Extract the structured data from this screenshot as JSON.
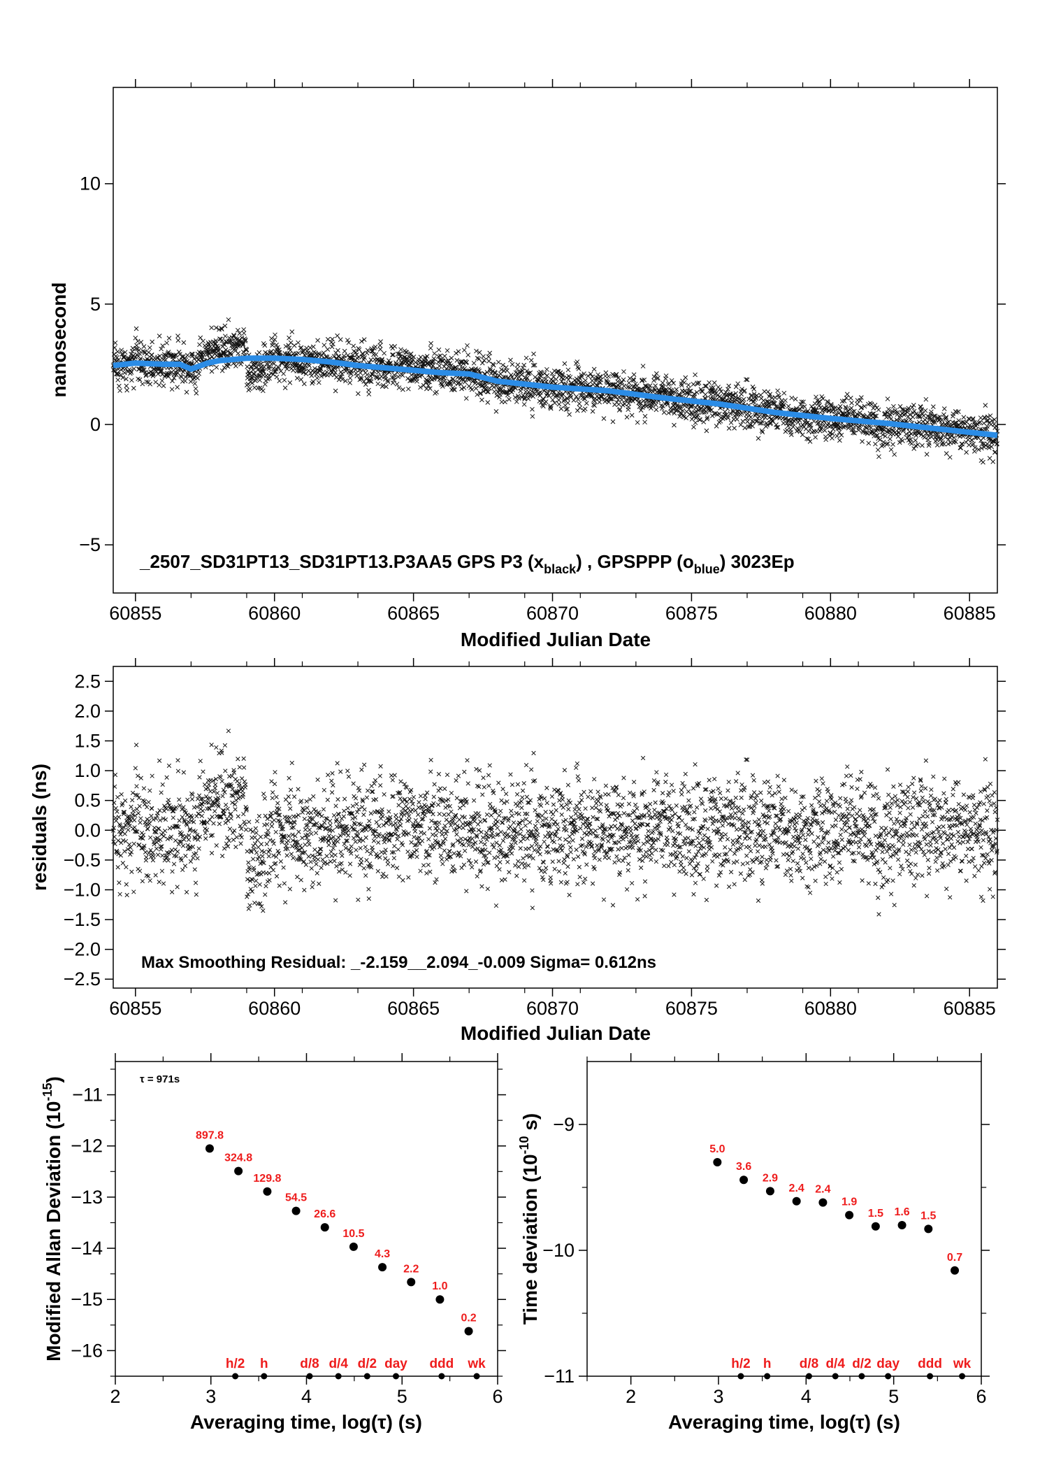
{
  "chart_data": [
    {
      "type": "scatter",
      "xlabel": "Modified Julian Date",
      "ylabel": "nanosecond",
      "xlim": [
        60854.2,
        60886.0
      ],
      "ylim": [
        -7.0,
        14.0
      ],
      "xticks": [
        60855,
        60860,
        60865,
        60870,
        60875,
        60880,
        60885
      ],
      "yticks": [
        -5,
        0,
        5,
        10
      ],
      "annotation": {
        "prefix": "_2507_SD31PT13_SD31PT13.P3AA5     GPS P3 (x",
        "sub1": "black",
        "mid": ") ,  GPSPPP (o",
        "sub2": "blue",
        "suffix": ")  3023Ep"
      },
      "series": [
        {
          "name": "GPS P3",
          "marker": "x",
          "color": "#000000",
          "n_points": 3023,
          "noise_sd_ns": 0.61
        },
        {
          "name": "GPSPPP",
          "marker": "o",
          "color": "#2b8ce6",
          "x": [
            60854.2,
            60855.0,
            60856.0,
            60856.6,
            60857.0,
            60857.6,
            60858.0,
            60859.0,
            60860.0,
            60861.0,
            60862.0,
            60863.0,
            60864.0,
            60865.0,
            60866.0,
            60867.0,
            60868.0,
            60870.0,
            60872.0,
            60874.0,
            60876.0,
            60878.0,
            60880.0,
            60882.0,
            60884.0,
            60886.0
          ],
          "y": [
            2.45,
            2.55,
            2.5,
            2.5,
            2.3,
            2.55,
            2.65,
            2.75,
            2.75,
            2.7,
            2.6,
            2.45,
            2.35,
            2.25,
            2.15,
            2.1,
            1.8,
            1.55,
            1.4,
            1.1,
            0.85,
            0.5,
            0.25,
            0.05,
            -0.2,
            -0.45
          ]
        }
      ]
    },
    {
      "type": "scatter",
      "xlabel": "Modified Julian Date",
      "ylabel": "residuals (ns)",
      "xlim": [
        60854.2,
        60886.0
      ],
      "ylim": [
        -2.65,
        2.75
      ],
      "xticks": [
        60855,
        60860,
        60865,
        60870,
        60875,
        60880,
        60885
      ],
      "yticks": [
        -2.5,
        -2.0,
        -1.5,
        -1.0,
        -0.5,
        0.0,
        0.5,
        1.0,
        1.5,
        2.0,
        2.5
      ],
      "ytick_labels": [
        "−2.5",
        "−2.0",
        "−1.5",
        "−1.0",
        "−0.5",
        "0.0",
        "0.5",
        "1.0",
        "1.5",
        "2.0",
        "2.5"
      ],
      "annotation": "Max Smoothing Residual: _-2.159__2.094_-0.009  Sigma= 0.612ns",
      "stats": {
        "min": -2.159,
        "max": 2.094,
        "mean": -0.009,
        "sigma": 0.612
      }
    },
    {
      "type": "scatter",
      "xlabel": "Averaging time, log(τ) (s)",
      "ylabel": "Modified Allan Deviation (10",
      "ylabel_sup": "-15",
      "ylabel_end": ")",
      "xlim": [
        2,
        6
      ],
      "ylim": [
        -16.5,
        -10.35
      ],
      "xticks": [
        2,
        3,
        4,
        5,
        6
      ],
      "yticks": [
        -16,
        -15,
        -14,
        -13,
        -12,
        -11
      ],
      "ytick_labels": [
        "−16",
        "−15",
        "−14",
        "−13",
        "−12",
        "−11"
      ],
      "tau_note": "τ = 971s",
      "x": [
        2.987,
        3.288,
        3.59,
        3.891,
        4.192,
        4.493,
        4.794,
        5.095,
        5.396,
        5.697
      ],
      "y": [
        -12.05,
        -12.49,
        -12.89,
        -13.27,
        -13.59,
        -13.97,
        -14.37,
        -14.66,
        -15.0,
        -15.62
      ],
      "labels": [
        "897.8",
        "324.8",
        "129.8",
        "54.5",
        "26.6",
        "10.5",
        "4.3",
        "2.2",
        "1.0",
        "0.2"
      ],
      "markers": {
        "x": [
          3.255,
          3.556,
          4.033,
          4.334,
          4.635,
          4.936,
          5.414,
          5.781
        ],
        "labels": [
          "h/2",
          "h",
          "d/8",
          "d/4",
          "d/2",
          "day",
          "ddd",
          "wk"
        ]
      }
    },
    {
      "type": "scatter",
      "xlabel": "Averaging time, log(τ) (s)",
      "ylabel": "Time deviation (10",
      "ylabel_sup": "-10",
      "ylabel_end": " s)",
      "xlim": [
        1.5,
        6.0
      ],
      "ylim": [
        -11.0,
        -8.5
      ],
      "xticks": [
        2,
        3,
        4,
        5,
        6
      ],
      "yticks": [
        -11,
        -10,
        -9
      ],
      "ytick_labels": [
        "−11",
        "−10",
        "−9"
      ],
      "x": [
        2.987,
        3.288,
        3.59,
        3.891,
        4.192,
        4.493,
        4.794,
        5.095,
        5.396,
        5.697
      ],
      "y": [
        -9.3,
        -9.44,
        -9.53,
        -9.61,
        -9.62,
        -9.72,
        -9.81,
        -9.8,
        -9.83,
        -10.16
      ],
      "labels": [
        "5.0",
        "3.6",
        "2.9",
        "2.4",
        "2.4",
        "1.9",
        "1.5",
        "1.6",
        "1.5",
        "0.7"
      ],
      "markers": {
        "x": [
          3.255,
          3.556,
          4.033,
          4.334,
          4.635,
          4.936,
          5.414,
          5.781
        ],
        "labels": [
          "h/2",
          "h",
          "d/8",
          "d/4",
          "d/2",
          "day",
          "ddd",
          "wk"
        ]
      }
    }
  ]
}
